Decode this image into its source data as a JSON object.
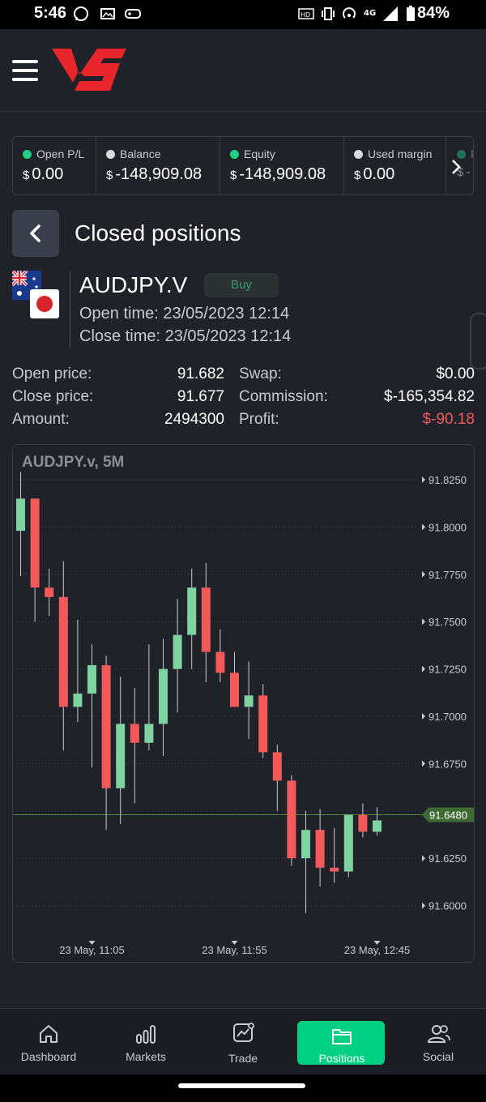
{
  "status_bar": {
    "time": "5:46",
    "battery": "84%",
    "icons": [
      "whatsapp-icon",
      "image-icon",
      "gamepad-icon",
      "hd-icon",
      "vibrate-icon",
      "hotspot-icon",
      "4g-icon",
      "signal-icon",
      "battery-icon"
    ]
  },
  "header": {
    "menu_icon": "hamburger-menu-icon",
    "logo": "VS"
  },
  "metrics": [
    {
      "label": "Open P/L",
      "currency": "$",
      "value": "0.00",
      "dot": "#1fd187"
    },
    {
      "label": "Balance",
      "currency": "$",
      "value": "-148,909.08",
      "dot": "#d9d9d9"
    },
    {
      "label": "Equity",
      "currency": "$",
      "value": "-148,909.08",
      "dot": "#1fd187"
    },
    {
      "label": "Used margin",
      "currency": "$",
      "value": "0.00",
      "dot": "#d9d9d9"
    },
    {
      "label": "F",
      "currency": "$",
      "value": "-",
      "dot": "#1fd187"
    }
  ],
  "page": {
    "title": "Closed positions",
    "back_icon": "chevron-left-icon"
  },
  "position": {
    "symbol": "AUDJPY.V",
    "side": "Buy",
    "open_time": "Open time: 23/05/2023 12:14",
    "close_time": "Close time: 23/05/2023 12:14",
    "flags": [
      "australia-flag-icon",
      "japan-flag-icon"
    ]
  },
  "details": {
    "open_price_label": "Open price:",
    "open_price": "91.682",
    "close_price_label": "Close price:",
    "close_price": "91.677",
    "amount_label": "Amount:",
    "amount": "2494300",
    "swap_label": "Swap:",
    "swap": "$0.00",
    "commission_label": "Commission:",
    "commission": "$-165,354.82",
    "profit_label": "Profit:",
    "profit": "$-90.18"
  },
  "chart_data": {
    "type": "candlestick",
    "title": "AUDJPY.v, 5M",
    "ylim": [
      91.585,
      91.84
    ],
    "y_ticks": [
      91.825,
      91.8,
      91.775,
      91.75,
      91.725,
      91.7,
      91.675,
      91.65,
      91.625,
      91.6
    ],
    "y_tick_labels": [
      "91.8250",
      "91.8000",
      "91.7750",
      "91.7500",
      "91.7250",
      "91.7000",
      "91.6750",
      "91.6250",
      "91.6000"
    ],
    "price_line": 91.648,
    "price_line_label": "91.6480",
    "x_labels": [
      "23 May, 11:05",
      "23 May, 11:55",
      "23 May, 12:45"
    ],
    "x_label_candle_index": [
      5,
      15,
      25
    ],
    "up_color": "#7ed3a0",
    "down_color": "#f25a5a",
    "candles": [
      {
        "o": 91.798,
        "h": 91.829,
        "l": 91.774,
        "c": 91.815
      },
      {
        "o": 91.815,
        "h": 91.815,
        "l": 91.75,
        "c": 91.768
      },
      {
        "o": 91.768,
        "h": 91.778,
        "l": 91.753,
        "c": 91.763
      },
      {
        "o": 91.763,
        "h": 91.782,
        "l": 91.682,
        "c": 91.705
      },
      {
        "o": 91.705,
        "h": 91.751,
        "l": 91.697,
        "c": 91.712
      },
      {
        "o": 91.712,
        "h": 91.738,
        "l": 91.673,
        "c": 91.727
      },
      {
        "o": 91.727,
        "h": 91.732,
        "l": 91.64,
        "c": 91.662
      },
      {
        "o": 91.662,
        "h": 91.721,
        "l": 91.643,
        "c": 91.696
      },
      {
        "o": 91.696,
        "h": 91.715,
        "l": 91.654,
        "c": 91.686
      },
      {
        "o": 91.686,
        "h": 91.738,
        "l": 91.682,
        "c": 91.696
      },
      {
        "o": 91.696,
        "h": 91.741,
        "l": 91.679,
        "c": 91.725
      },
      {
        "o": 91.725,
        "h": 91.762,
        "l": 91.702,
        "c": 91.743
      },
      {
        "o": 91.743,
        "h": 91.778,
        "l": 91.725,
        "c": 91.768
      },
      {
        "o": 91.768,
        "h": 91.781,
        "l": 91.718,
        "c": 91.734
      },
      {
        "o": 91.734,
        "h": 91.746,
        "l": 91.718,
        "c": 91.723
      },
      {
        "o": 91.723,
        "h": 91.734,
        "l": 91.705,
        "c": 91.705
      },
      {
        "o": 91.705,
        "h": 91.729,
        "l": 91.688,
        "c": 91.711
      },
      {
        "o": 91.711,
        "h": 91.717,
        "l": 91.678,
        "c": 91.681
      },
      {
        "o": 91.681,
        "h": 91.685,
        "l": 91.65,
        "c": 91.666
      },
      {
        "o": 91.666,
        "h": 91.669,
        "l": 91.621,
        "c": 91.625
      },
      {
        "o": 91.625,
        "h": 91.65,
        "l": 91.596,
        "c": 91.64
      },
      {
        "o": 91.64,
        "h": 91.651,
        "l": 91.61,
        "c": 91.62
      },
      {
        "o": 91.62,
        "h": 91.641,
        "l": 91.612,
        "c": 91.618
      },
      {
        "o": 91.618,
        "h": 91.648,
        "l": 91.615,
        "c": 91.648
      },
      {
        "o": 91.648,
        "h": 91.654,
        "l": 91.636,
        "c": 91.639
      },
      {
        "o": 91.639,
        "h": 91.652,
        "l": 91.637,
        "c": 91.645
      }
    ]
  },
  "bottom_nav": [
    {
      "label": "Dashboard",
      "icon": "home-icon",
      "active": false
    },
    {
      "label": "Markets",
      "icon": "bar-chart-icon",
      "active": false
    },
    {
      "label": "Trade",
      "icon": "trade-chart-icon",
      "active": false
    },
    {
      "label": "Positions",
      "icon": "folder-icon",
      "active": true
    },
    {
      "label": "Social",
      "icon": "users-icon",
      "active": false
    }
  ],
  "colors": {
    "accent": "#00d083",
    "loss": "#f25a5a",
    "buy_text": "#3c9a74"
  }
}
